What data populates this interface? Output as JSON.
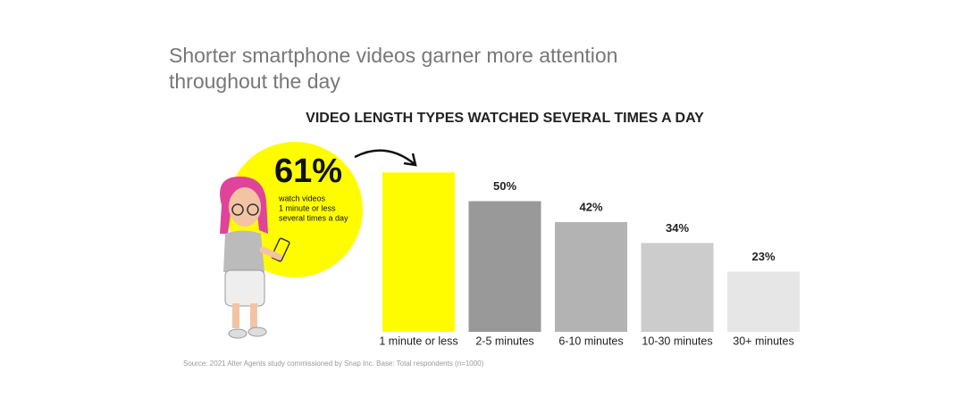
{
  "chart_data": {
    "type": "bar",
    "title": [
      "Shorter smartphone videos garner more attention",
      "throughout the day"
    ],
    "subtitle": "VIDEO LENGTH TYPES WATCHED SEVERAL TIMES A DAY",
    "categories": [
      "1 minute or less",
      "2-5 minutes",
      "6-10 minutes",
      "10-30 minutes",
      "30+ minutes"
    ],
    "values": [
      61,
      50,
      42,
      34,
      23
    ],
    "value_labels": [
      "61%",
      "50%",
      "42%",
      "34%",
      "23%"
    ],
    "colors": [
      "#fffc00",
      "#999999",
      "#b3b3b3",
      "#cccccc",
      "#e6e6e6"
    ],
    "annotation": [
      "watch videos",
      "1 minute or less",
      "several times a day"
    ],
    "source": "Source: 2021 Alter Agents study commissioned by Snap Inc. Base: Total respondents (n=1000)"
  }
}
